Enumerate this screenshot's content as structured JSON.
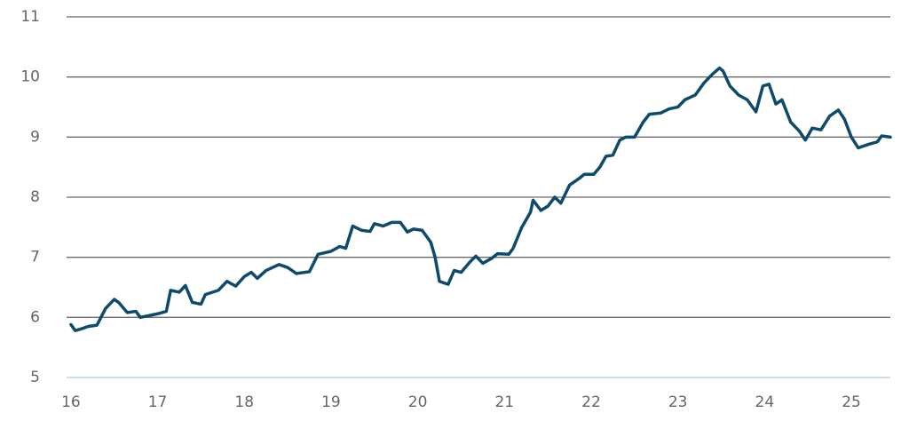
{
  "chart_data": {
    "type": "line",
    "x": [
      16.0,
      16.05,
      16.1,
      16.2,
      16.3,
      16.4,
      16.5,
      16.55,
      16.65,
      16.75,
      16.8,
      16.9,
      17.0,
      17.1,
      17.15,
      17.25,
      17.32,
      17.4,
      17.5,
      17.55,
      17.7,
      17.8,
      17.9,
      18.0,
      18.08,
      18.15,
      18.25,
      18.4,
      18.5,
      18.6,
      18.75,
      18.85,
      19.0,
      19.1,
      19.17,
      19.25,
      19.35,
      19.45,
      19.5,
      19.6,
      19.7,
      19.8,
      19.88,
      19.95,
      20.05,
      20.15,
      20.2,
      20.25,
      20.35,
      20.42,
      20.5,
      20.6,
      20.67,
      20.75,
      20.85,
      20.92,
      21.05,
      21.1,
      21.2,
      21.3,
      21.33,
      21.42,
      21.5,
      21.58,
      21.65,
      21.75,
      21.85,
      21.92,
      22.03,
      22.1,
      22.17,
      22.25,
      22.33,
      22.4,
      22.5,
      22.6,
      22.67,
      22.8,
      22.9,
      23.0,
      23.08,
      23.2,
      23.3,
      23.4,
      23.48,
      23.52,
      23.6,
      23.7,
      23.8,
      23.9,
      23.98,
      24.05,
      24.13,
      24.2,
      24.3,
      24.4,
      24.47,
      24.55,
      24.65,
      24.75,
      24.85,
      24.92,
      25.0,
      25.08,
      25.2,
      25.3,
      25.35,
      25.45
    ],
    "series": [
      {
        "color": "#0d4a6b",
        "values": [
          5.88,
          5.78,
          5.8,
          5.85,
          5.87,
          6.15,
          6.3,
          6.25,
          6.08,
          6.1,
          6.0,
          6.03,
          6.06,
          6.1,
          6.45,
          6.42,
          6.53,
          6.25,
          6.22,
          6.38,
          6.45,
          6.6,
          6.52,
          6.68,
          6.75,
          6.65,
          6.78,
          6.88,
          6.83,
          6.73,
          6.76,
          7.05,
          7.1,
          7.18,
          7.15,
          7.52,
          7.45,
          7.43,
          7.56,
          7.52,
          7.58,
          7.58,
          7.42,
          7.47,
          7.45,
          7.25,
          7.0,
          6.6,
          6.55,
          6.78,
          6.75,
          6.92,
          7.02,
          6.9,
          6.98,
          7.06,
          7.05,
          7.15,
          7.5,
          7.75,
          7.95,
          7.78,
          7.85,
          8.0,
          7.9,
          8.2,
          8.3,
          8.38,
          8.38,
          8.5,
          8.68,
          8.7,
          8.95,
          9.0,
          9.0,
          9.25,
          9.38,
          9.4,
          9.47,
          9.5,
          9.62,
          9.7,
          9.9,
          10.05,
          10.15,
          10.1,
          9.85,
          9.7,
          9.62,
          9.42,
          9.85,
          9.88,
          9.55,
          9.62,
          9.25,
          9.1,
          8.95,
          9.15,
          9.12,
          9.35,
          9.45,
          9.3,
          9.0,
          8.82,
          8.88,
          8.92,
          9.02,
          9.0
        ]
      }
    ],
    "xlim": [
      15.95,
      25.45
    ],
    "xticks": [
      16,
      17,
      18,
      19,
      20,
      21,
      22,
      23,
      24,
      25
    ],
    "ylim": [
      5,
      11
    ],
    "yticks": [
      5,
      6,
      7,
      8,
      9,
      10,
      11
    ],
    "grid": true
  }
}
